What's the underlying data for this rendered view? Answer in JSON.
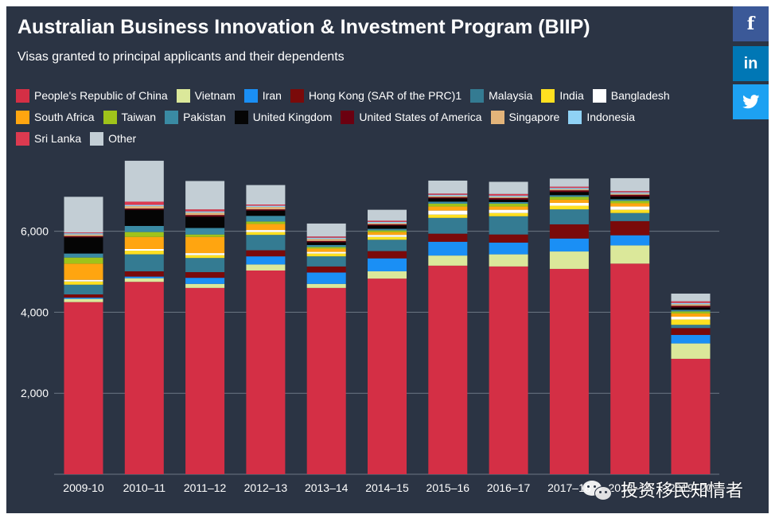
{
  "header": {
    "title": "Australian Business Innovation & Investment Program (BIIP)",
    "subtitle": "Visas granted to principal applicants and their dependents"
  },
  "social": {
    "facebook": "f",
    "linkedin": "in",
    "twitter_icon": "twitter-bird-icon"
  },
  "watermark": {
    "text": "投资移民知情者",
    "icon": "wechat-icon"
  },
  "chart_data": {
    "type": "bar",
    "stacked": true,
    "title": "Australian Business Innovation & Investment Program (BIIP)",
    "subtitle": "Visas granted to principal applicants and their dependents",
    "xlabel": "",
    "ylabel": "",
    "ylim": [
      0,
      8000
    ],
    "yticks": [
      2000,
      4000,
      6000
    ],
    "ytick_labels": [
      "2,000",
      "4,000",
      "6,000"
    ],
    "grid": true,
    "legend_position": "top",
    "categories": [
      "2009-10",
      "2010–11",
      "2011–12",
      "2012–13",
      "2013–14",
      "2014–15",
      "2015–16",
      "2016–17",
      "2017–18",
      "2018–19",
      "2019–20"
    ],
    "series": [
      {
        "name": "People's Republic of China",
        "color": "#d42f45",
        "values": [
          4250,
          4750,
          4600,
          5030,
          4600,
          4830,
          5150,
          5130,
          5070,
          5200,
          2850
        ]
      },
      {
        "name": "Vietnam",
        "color": "#dbe89a",
        "values": [
          80,
          90,
          100,
          150,
          100,
          180,
          250,
          300,
          430,
          450,
          380
        ]
      },
      {
        "name": "Iran",
        "color": "#1a8ff5",
        "values": [
          30,
          40,
          150,
          200,
          280,
          320,
          340,
          290,
          320,
          250,
          210
        ]
      },
      {
        "name": "Hong Kong (SAR of the PRC)1",
        "color": "#7a0a0a",
        "values": [
          80,
          130,
          140,
          150,
          150,
          180,
          200,
          200,
          350,
          350,
          170
        ]
      },
      {
        "name": "Malaysia",
        "color": "#347b92",
        "values": [
          240,
          420,
          350,
          380,
          250,
          280,
          390,
          450,
          370,
          200,
          80
        ]
      },
      {
        "name": "India",
        "color": "#ffe020",
        "values": [
          80,
          90,
          70,
          70,
          70,
          70,
          80,
          80,
          90,
          80,
          130
        ]
      },
      {
        "name": "Bangladesh",
        "color": "#ffffff",
        "values": [
          40,
          40,
          50,
          50,
          40,
          50,
          100,
          80,
          70,
          80,
          70
        ]
      },
      {
        "name": "South Africa",
        "color": "#ffa510",
        "values": [
          400,
          300,
          400,
          150,
          80,
          70,
          100,
          80,
          80,
          80,
          80
        ]
      },
      {
        "name": "Taiwan",
        "color": "#9fc31a",
        "values": [
          150,
          120,
          60,
          60,
          40,
          40,
          70,
          70,
          70,
          60,
          50
        ]
      },
      {
        "name": "Pakistan",
        "color": "#3a8aa3",
        "values": [
          100,
          150,
          160,
          140,
          50,
          40,
          50,
          40,
          40,
          40,
          40
        ]
      },
      {
        "name": "United Kingdom",
        "color": "#050505",
        "values": [
          400,
          400,
          280,
          130,
          70,
          80,
          80,
          60,
          80,
          70,
          60
        ]
      },
      {
        "name": "United States of America",
        "color": "#6b0010",
        "values": [
          30,
          30,
          40,
          30,
          30,
          30,
          30,
          40,
          40,
          40,
          40
        ]
      },
      {
        "name": "Singapore",
        "color": "#e3b47a",
        "values": [
          40,
          60,
          60,
          60,
          50,
          30,
          30,
          30,
          30,
          30,
          40
        ]
      },
      {
        "name": "Indonesia",
        "color": "#8fd2f5",
        "values": [
          30,
          30,
          30,
          30,
          30,
          30,
          30,
          30,
          30,
          30,
          30
        ]
      },
      {
        "name": "Sri Lanka",
        "color": "#dc3a50",
        "values": [
          20,
          80,
          50,
          30,
          30,
          30,
          30,
          40,
          30,
          30,
          40
        ]
      },
      {
        "name": "Other",
        "color": "#c3ced5",
        "values": [
          880,
          1010,
          700,
          480,
          320,
          270,
          320,
          300,
          200,
          320,
          190
        ]
      }
    ]
  }
}
